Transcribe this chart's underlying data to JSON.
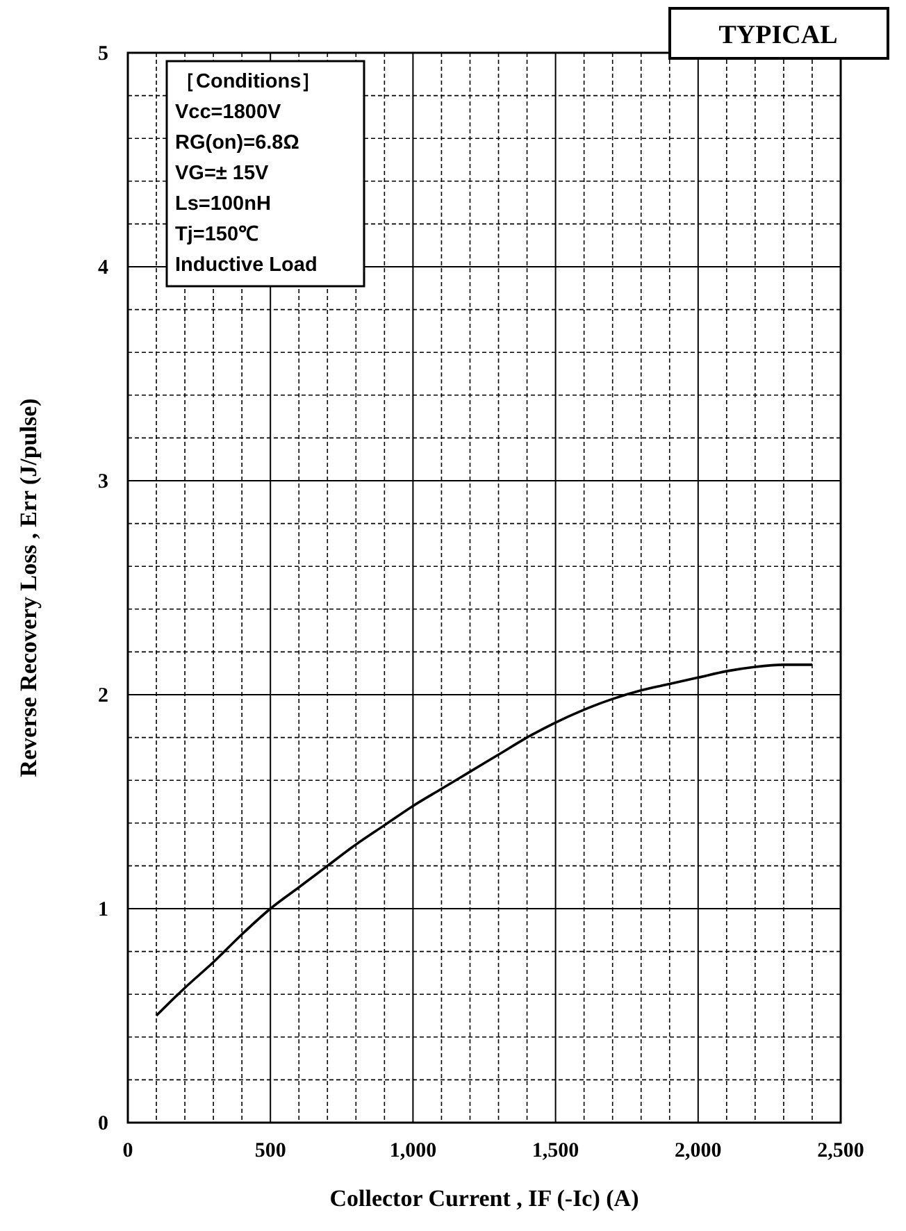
{
  "chart_data": {
    "type": "line",
    "xlabel": "Collector Current , IF (-Ic) (A)",
    "ylabel": "Reverse Recovery Loss , Err (J/pulse)",
    "annotations": [
      "TYPICAL",
      "［Conditions］",
      "Vcc=1800V",
      "RG(on)=6.8Ω",
      "VG=± 15V",
      "Ls=100nH",
      "Tj=150℃",
      "Inductive Load"
    ],
    "series": [
      {
        "color": "#000000",
        "x": [
          100,
          200,
          300,
          400,
          500,
          600,
          700,
          800,
          900,
          1000,
          1100,
          1200,
          1300,
          1400,
          1500,
          1600,
          1700,
          1800,
          1900,
          2000,
          2100,
          2200,
          2300,
          2400
        ],
        "values": [
          0.5,
          0.63,
          0.75,
          0.88,
          1.0,
          1.1,
          1.2,
          1.3,
          1.39,
          1.48,
          1.56,
          1.64,
          1.72,
          1.8,
          1.87,
          1.93,
          1.98,
          2.02,
          2.05,
          2.08,
          2.11,
          2.13,
          2.14,
          2.14
        ]
      }
    ],
    "xlim": [
      0,
      2500
    ],
    "ylim": [
      0,
      5
    ],
    "xticks": [
      0,
      {
        "value": 100,
        "label": null
      },
      {
        "value": 200,
        "label": null
      },
      {
        "value": 300,
        "label": null
      },
      {
        "value": 400,
        "label": null
      },
      500,
      {
        "value": 600,
        "label": null
      },
      {
        "value": 700,
        "label": null
      },
      {
        "value": 800,
        "label": null
      },
      {
        "value": 900,
        "label": null
      },
      {
        "value": 1000,
        "label": "1,000"
      },
      {
        "value": 1100,
        "label": null
      },
      {
        "value": 1200,
        "label": null
      },
      {
        "value": 1300,
        "label": null
      },
      {
        "value": 1400,
        "label": null
      },
      {
        "value": 1500,
        "label": "1,500"
      },
      {
        "value": 1600,
        "label": null
      },
      {
        "value": 1700,
        "label": null
      },
      {
        "value": 1800,
        "label": null
      },
      {
        "value": 1900,
        "label": null
      },
      {
        "value": 2000,
        "label": "2,000"
      },
      {
        "value": 2100,
        "label": null
      },
      {
        "value": 2200,
        "label": null
      },
      {
        "value": 2300,
        "label": null
      },
      {
        "value": 2400,
        "label": null
      },
      {
        "value": 2500,
        "label": "2,500"
      }
    ],
    "yticks": [
      0,
      {
        "value": 0.2,
        "label": null
      },
      {
        "value": 0.4,
        "label": null
      },
      {
        "value": 0.6,
        "label": null
      },
      {
        "value": 0.8,
        "label": null
      },
      1,
      {
        "value": 1.2,
        "label": null
      },
      {
        "value": 1.4,
        "label": null
      },
      {
        "value": 1.6,
        "label": null
      },
      {
        "value": 1.8,
        "label": null
      },
      2,
      {
        "value": 2.2,
        "label": null
      },
      {
        "value": 2.4,
        "label": null
      },
      {
        "value": 2.6,
        "label": null
      },
      {
        "value": 2.8,
        "label": null
      },
      3,
      {
        "value": 3.2,
        "label": null
      },
      {
        "value": 3.4,
        "label": null
      },
      {
        "value": 3.6,
        "label": null
      },
      {
        "value": 3.8,
        "label": null
      },
      4,
      {
        "value": 4.2,
        "label": null
      },
      {
        "value": 4.4,
        "label": null
      },
      {
        "value": 4.6,
        "label": null
      },
      {
        "value": 4.8,
        "label": null
      },
      5
    ],
    "grid": true,
    "marker": "none",
    "line_style": "solid"
  }
}
